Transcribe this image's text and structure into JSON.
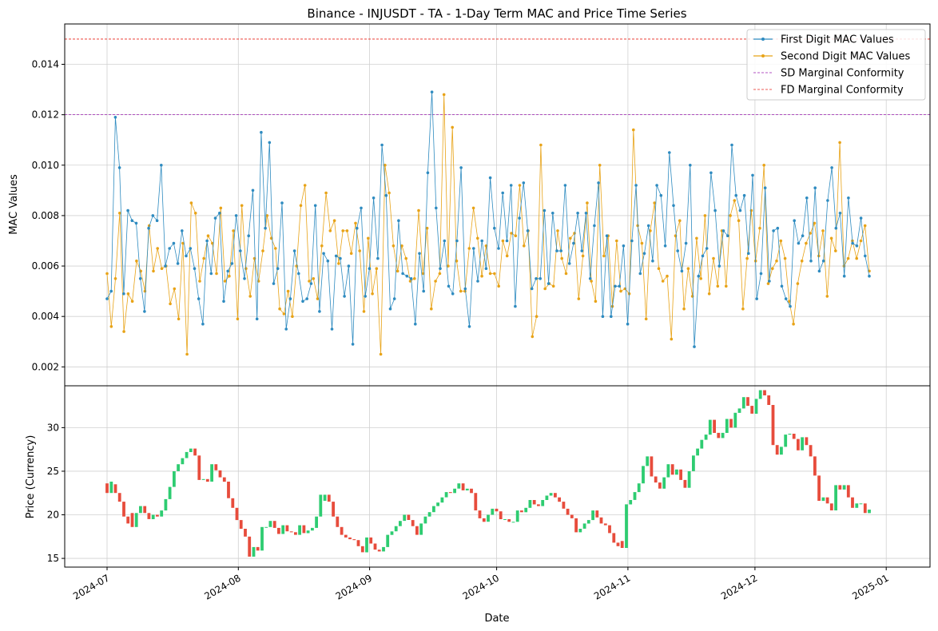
{
  "chart_data": [
    {
      "type": "line",
      "title": "Binance - INJUSDT - TA - 1-Day Term MAC and Price Time Series",
      "xlabel": "",
      "ylabel": "MAC Values",
      "ylim": [
        0.00125,
        0.0156
      ],
      "yticks": [
        0.002,
        0.004,
        0.006,
        0.008,
        0.01,
        0.012,
        0.014
      ],
      "ytick_labels": [
        "0.002",
        "0.004",
        "0.006",
        "0.008",
        "0.010",
        "0.012",
        "0.014"
      ],
      "start_date": "2024-07-01",
      "grid": true,
      "legend_position": "top-right",
      "series": [
        {
          "name": "First Digit MAC Values",
          "color": "#2e8bc0",
          "values": [
            0.0047,
            0.005,
            0.0119,
            0.0099,
            0.0049,
            0.0082,
            0.0078,
            0.0077,
            0.0055,
            0.0042,
            0.0075,
            0.008,
            0.0078,
            0.01,
            0.006,
            0.0067,
            0.0069,
            0.0061,
            0.0074,
            0.0064,
            0.0067,
            0.0059,
            0.0047,
            0.0037,
            0.007,
            0.0057,
            0.0079,
            0.0081,
            0.0046,
            0.0058,
            0.0061,
            0.008,
            0.0066,
            0.0055,
            0.0072,
            0.009,
            0.0039,
            0.0113,
            0.0075,
            0.0109,
            0.0053,
            0.0059,
            0.0085,
            0.0035,
            0.0047,
            0.0066,
            0.0057,
            0.0046,
            0.0047,
            0.0053,
            0.0084,
            0.0042,
            0.0065,
            0.0062,
            0.0035,
            0.0064,
            0.0063,
            0.0048,
            0.006,
            0.0029,
            0.0075,
            0.0083,
            0.0048,
            0.0059,
            0.0087,
            0.0063,
            0.0108,
            0.0088,
            0.0043,
            0.0047,
            0.0078,
            0.0057,
            0.0056,
            0.0055,
            0.0037,
            0.0065,
            0.005,
            0.0097,
            0.0129,
            0.0083,
            0.0059,
            0.007,
            0.0052,
            0.0049,
            0.007,
            0.0099,
            0.0051,
            0.0036,
            0.0067,
            0.0054,
            0.007,
            0.0059,
            0.0095,
            0.0075,
            0.0067,
            0.0089,
            0.007,
            0.0092,
            0.0044,
            0.0079,
            0.0093,
            0.0074,
            0.0051,
            0.0055,
            0.0055,
            0.0082,
            0.0053,
            0.0081,
            0.0066,
            0.0066,
            0.0092,
            0.0061,
            0.0069,
            0.0081,
            0.0066,
            0.0081,
            0.0055,
            0.0076,
            0.0093,
            0.004,
            0.0072,
            0.004,
            0.0052,
            0.0052,
            0.0068,
            0.0037,
            0.007,
            0.0092,
            0.0057,
            0.0065,
            0.0076,
            0.0062,
            0.0092,
            0.0088,
            0.0068,
            0.0105,
            0.0084,
            0.0066,
            0.0058,
            0.0069,
            0.01,
            0.0028,
            0.0056,
            0.0064,
            0.0067,
            0.0097,
            0.0082,
            0.006,
            0.0074,
            0.0072,
            0.0108,
            0.0088,
            0.0082,
            0.0088,
            0.0065,
            0.0096,
            0.0047,
            0.0057,
            0.0091,
            0.0054,
            0.0074,
            0.0075,
            0.0052,
            0.0047,
            0.0044,
            0.0078,
            0.0069,
            0.0072,
            0.0087,
            0.0062,
            0.0091,
            0.0058,
            0.0062,
            0.0086,
            0.0099,
            0.0075,
            0.0081,
            0.0056,
            0.0087,
            0.0069,
            0.0068,
            0.0079,
            0.0064,
            0.0056
          ]
        },
        {
          "name": "Second Digit MAC Values",
          "color": "#e8a317",
          "values": [
            0.0057,
            0.0036,
            0.0055,
            0.0081,
            0.0034,
            0.0049,
            0.0046,
            0.0062,
            0.0058,
            0.005,
            0.0076,
            0.0058,
            0.0067,
            0.0059,
            0.006,
            0.0045,
            0.0051,
            0.0039,
            0.0069,
            0.0025,
            0.0085,
            0.0081,
            0.0054,
            0.0063,
            0.0072,
            0.0069,
            0.0057,
            0.0083,
            0.0054,
            0.0056,
            0.0074,
            0.0039,
            0.0084,
            0.0059,
            0.0048,
            0.0063,
            0.0054,
            0.0066,
            0.008,
            0.0071,
            0.0067,
            0.0043,
            0.0041,
            0.005,
            0.004,
            0.006,
            0.0084,
            0.0092,
            0.0054,
            0.0055,
            0.0047,
            0.0068,
            0.0089,
            0.0074,
            0.0078,
            0.0061,
            0.0074,
            0.0074,
            0.0065,
            0.0077,
            0.0066,
            0.0042,
            0.0071,
            0.0049,
            0.0059,
            0.0025,
            0.01,
            0.0089,
            0.0068,
            0.0058,
            0.0068,
            0.0063,
            0.0054,
            0.0055,
            0.0082,
            0.0057,
            0.0075,
            0.0043,
            0.0054,
            0.0057,
            0.0128,
            0.006,
            0.0115,
            0.0062,
            0.005,
            0.005,
            0.0067,
            0.0083,
            0.0071,
            0.0056,
            0.0068,
            0.0057,
            0.0057,
            0.0052,
            0.007,
            0.0064,
            0.0073,
            0.0072,
            0.0092,
            0.0068,
            0.0074,
            0.0032,
            0.004,
            0.0108,
            0.0051,
            0.0053,
            0.0052,
            0.0074,
            0.0063,
            0.0057,
            0.0071,
            0.0073,
            0.0047,
            0.0064,
            0.0085,
            0.0054,
            0.0046,
            0.01,
            0.0064,
            0.0072,
            0.0044,
            0.007,
            0.005,
            0.0051,
            0.0049,
            0.0114,
            0.0076,
            0.0069,
            0.0039,
            0.0074,
            0.0085,
            0.0059,
            0.0054,
            0.0056,
            0.0031,
            0.0072,
            0.0078,
            0.0043,
            0.0059,
            0.0048,
            0.0071,
            0.0055,
            0.008,
            0.0049,
            0.0063,
            0.0052,
            0.0074,
            0.0052,
            0.008,
            0.0086,
            0.0078,
            0.0043,
            0.0063,
            0.0082,
            0.0062,
            0.0075,
            0.01,
            0.0053,
            0.0059,
            0.0062,
            0.007,
            0.0063,
            0.0046,
            0.0037,
            0.0053,
            0.0062,
            0.0069,
            0.0073,
            0.0077,
            0.0064,
            0.0074,
            0.0048,
            0.0071,
            0.0066,
            0.0109,
            0.006,
            0.0063,
            0.007,
            0.0063,
            0.007,
            0.0076,
            0.0058
          ]
        }
      ],
      "reference_lines": [
        {
          "name": "SD Marginal Conformity",
          "value": 0.012,
          "color": "#9b1bb0",
          "style": "dashed"
        },
        {
          "name": "FD Marginal Conformity",
          "value": 0.015,
          "color": "#e8261e",
          "style": "dashed"
        }
      ]
    },
    {
      "type": "candlestick",
      "xlabel": "Date",
      "ylabel": "Price (Currency)",
      "ylim": [
        14,
        34.8
      ],
      "yticks": [
        15,
        20,
        25,
        30
      ],
      "ytick_labels": [
        "15",
        "20",
        "25",
        "30"
      ],
      "xtick_labels": [
        "2024-07",
        "2024-08",
        "2024-09",
        "2024-10",
        "2024-11",
        "2024-12",
        "2025-01"
      ],
      "up_color": "#2ecc71",
      "down_color": "#e74c3c",
      "grid": true,
      "close": [
        22.5,
        23.8,
        22.5,
        21.5,
        19.8,
        19.0,
        18.6,
        20.2,
        21.0,
        20.2,
        19.5,
        20.0,
        19.8,
        20.5,
        21.8,
        23.2,
        25.0,
        25.8,
        26.5,
        27.2,
        27.6,
        26.8,
        24.0,
        24.1,
        23.8,
        25.8,
        25.1,
        24.3,
        23.8,
        21.9,
        20.8,
        19.4,
        18.4,
        17.5,
        15.2,
        16.3,
        15.9,
        18.6,
        18.6,
        19.3,
        18.5,
        17.8,
        18.8,
        18.1,
        18.0,
        17.7,
        18.8,
        17.9,
        18.2,
        18.5,
        19.8,
        22.3,
        22.3,
        21.5,
        19.8,
        18.6,
        17.7,
        17.4,
        17.2,
        17.1,
        16.4,
        15.7,
        17.4,
        16.7,
        16.0,
        15.8,
        16.3,
        17.7,
        18.1,
        18.7,
        19.3,
        20.0,
        19.4,
        18.7,
        17.7,
        19.0,
        19.8,
        20.3,
        21.0,
        21.4,
        22.0,
        22.6,
        22.5,
        23.0,
        23.6,
        22.8,
        23.0,
        22.5,
        20.5,
        19.6,
        19.2,
        20.0,
        20.7,
        20.4,
        19.5,
        19.5,
        19.2,
        19.2,
        20.5,
        20.3,
        20.8,
        21.7,
        21.2,
        21.0,
        21.7,
        22.2,
        22.5,
        22.0,
        21.5,
        20.7,
        20.0,
        19.6,
        18.0,
        18.4,
        19.0,
        19.4,
        20.5,
        19.7,
        19.0,
        18.8,
        17.9,
        16.8,
        16.4,
        16.2,
        21.2,
        21.7,
        22.6,
        23.6,
        25.6,
        26.7,
        24.4,
        23.7,
        23.0,
        24.3,
        25.8,
        24.6,
        25.2,
        24.0,
        23.1,
        25.0,
        26.8,
        27.6,
        28.6,
        29.2,
        30.9,
        29.4,
        28.8,
        29.4,
        31.0,
        30.0,
        31.7,
        32.2,
        33.5,
        32.5,
        31.6,
        33.3,
        34.3,
        33.7,
        32.6,
        28.0,
        26.9,
        27.8,
        29.2,
        29.3,
        28.7,
        27.4,
        28.9,
        28.0,
        26.7,
        24.5,
        21.6,
        22.0,
        21.3,
        20.5,
        23.4,
        22.9,
        23.4,
        22.0,
        20.8,
        21.3,
        21.3,
        20.2,
        20.6
      ],
      "open": [
        23.6,
        22.5,
        23.5,
        22.5,
        21.5,
        19.8,
        20.2,
        18.6,
        20.2,
        21.0,
        20.2,
        19.5,
        20.0,
        19.8,
        20.5,
        21.8,
        23.2,
        25.0,
        25.8,
        26.5,
        27.2,
        27.6,
        26.8,
        24.0,
        24.1,
        23.8,
        25.8,
        25.1,
        24.3,
        23.8,
        21.9,
        20.8,
        19.4,
        18.4,
        17.5,
        15.2,
        16.3,
        15.9,
        18.6,
        18.6,
        19.3,
        18.5,
        17.8,
        18.8,
        18.1,
        18.0,
        17.7,
        18.8,
        17.9,
        18.2,
        18.5,
        19.8,
        21.6,
        22.3,
        21.5,
        19.8,
        18.6,
        17.7,
        17.4,
        17.2,
        17.1,
        16.4,
        15.7,
        17.4,
        16.7,
        16.0,
        15.8,
        16.3,
        17.7,
        18.1,
        18.7,
        19.3,
        20.0,
        19.4,
        18.7,
        17.7,
        19.0,
        19.8,
        20.3,
        21.0,
        21.4,
        22.0,
        22.6,
        22.5,
        23.0,
        23.6,
        22.8,
        23.0,
        22.5,
        20.5,
        19.6,
        19.2,
        20.0,
        20.7,
        20.4,
        19.5,
        19.5,
        19.2,
        19.2,
        20.5,
        20.3,
        20.8,
        21.7,
        21.2,
        21.0,
        21.7,
        22.2,
        22.5,
        22.0,
        21.5,
        20.7,
        20.0,
        19.6,
        18.0,
        18.4,
        19.0,
        19.4,
        20.5,
        19.7,
        19.0,
        18.8,
        17.9,
        16.8,
        17.0,
        16.2,
        21.2,
        21.7,
        22.6,
        23.6,
        25.6,
        26.7,
        24.4,
        23.7,
        23.0,
        24.3,
        25.8,
        24.6,
        25.2,
        24.0,
        23.1,
        25.0,
        26.8,
        27.6,
        28.6,
        29.2,
        30.9,
        29.4,
        28.8,
        29.4,
        31.0,
        30.0,
        31.7,
        32.2,
        33.5,
        32.5,
        31.6,
        33.3,
        34.3,
        33.7,
        32.6,
        28.0,
        26.9,
        27.8,
        29.2,
        29.3,
        28.7,
        27.4,
        28.9,
        28.0,
        26.7,
        24.5,
        21.6,
        22.0,
        21.3,
        20.5,
        23.4,
        22.9,
        23.4,
        22.0,
        20.8,
        21.3,
        21.3,
        20.2
      ]
    }
  ],
  "legend": {
    "items": [
      {
        "label": "First Digit MAC Values",
        "color": "#2e8bc0",
        "style": "line-marker"
      },
      {
        "label": "Second Digit MAC Values",
        "color": "#e8a317",
        "style": "line-marker"
      },
      {
        "label": "SD Marginal Conformity",
        "color": "#9b1bb0",
        "style": "dashed"
      },
      {
        "label": "FD Marginal Conformity",
        "color": "#e8261e",
        "style": "dashed"
      }
    ]
  }
}
